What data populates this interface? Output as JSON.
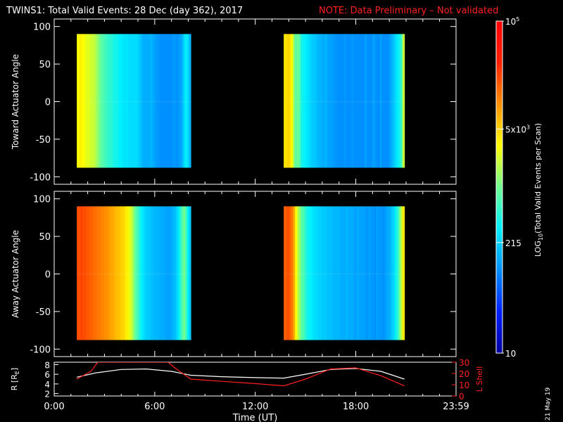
{
  "title": {
    "main": "TWINS1: Total Valid Events: 28 Dec (day 362), 2017",
    "note": "NOTE: Data Preliminary – Not validated"
  },
  "datestamp": "21 May 19",
  "colors": {
    "background": "#000000",
    "axes": "#ffffff",
    "note": "#ff2020",
    "lshell": "#ff2020",
    "radius": "#ffffff"
  },
  "chart_data": [
    {
      "type": "heatmap",
      "name": "toward",
      "ylabel": "Toward Actuator Angle",
      "ylim": [
        -110,
        110
      ],
      "yticks": [
        100,
        50,
        0,
        -50,
        -100
      ],
      "xlim": [
        0,
        23.983
      ],
      "angle_range": [
        -88,
        90
      ],
      "segments": [
        {
          "start_hour": 1.35,
          "end_hour": 8.15,
          "log10_counts": [
            3.5,
            3.55,
            3.55,
            3.5,
            3.45,
            3.4,
            3.4,
            3.35,
            3.3,
            3.3,
            3.2,
            3.1,
            3.0,
            2.9,
            2.85,
            2.8,
            2.75,
            2.7,
            2.7,
            2.65,
            2.6,
            2.6,
            2.55,
            2.5,
            2.5,
            2.45,
            2.45,
            2.45,
            2.4,
            2.4,
            2.4,
            2.4,
            2.4,
            2.35,
            2.3,
            2.2,
            2.15,
            2.15,
            2.15,
            2.15,
            2.2,
            2.15,
            2.1,
            2.05,
            2.05,
            2.0,
            2.0,
            2.0,
            2.0,
            2.0,
            2.0,
            2.0,
            2.05,
            2.05,
            2.0,
            2.05,
            2.1,
            2.2,
            2.4,
            2.5,
            2.4,
            2.2
          ]
        },
        {
          "start_hour": 13.7,
          "end_hour": 20.9,
          "log10_counts": [
            3.6,
            3.65,
            3.7,
            3.6,
            3.5,
            3.1,
            2.9,
            3.0,
            2.85,
            2.6,
            2.55,
            2.5,
            2.45,
            2.4,
            2.35,
            2.3,
            2.3,
            2.25,
            2.2,
            2.2,
            2.15,
            2.15,
            2.2,
            2.1,
            2.1,
            2.1,
            2.05,
            2.05,
            2.0,
            2.0,
            2.0,
            2.0,
            2.05,
            2.0,
            2.0,
            2.0,
            2.05,
            2.0,
            2.0,
            2.0,
            2.0,
            2.0,
            2.0,
            2.1,
            2.0,
            2.0,
            2.0,
            2.1,
            2.05,
            2.0,
            2.0,
            2.1,
            2.0,
            2.0,
            2.0,
            2.0,
            2.1,
            2.2,
            2.3,
            2.4,
            2.5,
            2.6,
            2.8,
            3.3
          ]
        }
      ]
    },
    {
      "type": "heatmap",
      "name": "away",
      "ylabel": "Away Actuator Angle",
      "ylim": [
        -110,
        110
      ],
      "yticks": [
        100,
        50,
        0,
        -50,
        -100
      ],
      "xlim": [
        0,
        23.983
      ],
      "angle_range": [
        -88,
        90
      ],
      "segments": [
        {
          "start_hour": 1.35,
          "end_hour": 8.15,
          "log10_counts": [
            4.3,
            4.3,
            4.35,
            4.3,
            4.3,
            4.25,
            4.25,
            4.2,
            4.2,
            4.15,
            4.15,
            4.1,
            4.1,
            4.05,
            4.05,
            4.0,
            4.0,
            3.95,
            3.9,
            3.9,
            3.85,
            3.8,
            3.8,
            3.75,
            3.7,
            3.7,
            3.6,
            3.55,
            3.45,
            3.35,
            3.2,
            3.0,
            2.85,
            2.75,
            2.6,
            2.5,
            2.4,
            2.35,
            2.3,
            2.3,
            2.25,
            2.25,
            2.2,
            2.2,
            2.2,
            2.15,
            2.15,
            2.15,
            2.1,
            2.1,
            2.1,
            2.15,
            2.2,
            2.25,
            2.35,
            2.5,
            2.7,
            2.9,
            3.0,
            2.8,
            2.5,
            2.3
          ]
        },
        {
          "start_hour": 13.7,
          "end_hour": 20.9,
          "log10_counts": [
            4.2,
            4.25,
            4.3,
            4.2,
            4.1,
            3.9,
            3.5,
            3.3,
            3.1,
            2.9,
            2.85,
            2.7,
            2.6,
            2.55,
            2.5,
            2.45,
            2.4,
            2.4,
            2.35,
            2.35,
            2.3,
            2.3,
            2.3,
            2.25,
            2.25,
            2.25,
            2.2,
            2.2,
            2.2,
            2.2,
            2.15,
            2.15,
            2.15,
            2.2,
            2.15,
            2.15,
            2.15,
            2.1,
            2.1,
            2.15,
            2.1,
            2.1,
            2.1,
            2.05,
            2.05,
            2.1,
            2.05,
            2.05,
            2.0,
            2.1,
            2.05,
            2.05,
            2.0,
            2.05,
            2.1,
            2.15,
            2.2,
            2.3,
            2.4,
            2.55,
            2.7,
            3.0,
            3.3,
            3.6
          ]
        }
      ]
    },
    {
      "type": "line",
      "name": "orbit",
      "xlabel": "Time (UT)",
      "xticks": [
        "0:00",
        "6:00",
        "12:00",
        "18:00",
        "23:59"
      ],
      "xtick_hours": [
        0,
        6,
        12,
        18,
        23.983
      ],
      "xlim": [
        0,
        23.983
      ],
      "ylabel_left": "R [R",
      "ylabel_left_sub": "E",
      "ylabel_left_end": "]",
      "ylim_left": [
        1.5,
        8.5
      ],
      "yticks_left": [
        8,
        6,
        4,
        2
      ],
      "ylabel_right": "L Shell",
      "ylim_right": [
        0,
        30
      ],
      "yticks_right": [
        30,
        20,
        10,
        0
      ],
      "series": [
        {
          "axis": "left",
          "x": [
            1.35,
            2.5,
            4,
            5.5,
            7,
            8.15,
            10,
            12,
            13.7,
            15,
            16.5,
            18,
            19.5,
            20.9
          ],
          "y": [
            5.4,
            6.3,
            7.0,
            7.1,
            6.6,
            5.8,
            5.5,
            5.3,
            5.2,
            6.0,
            7.0,
            7.2,
            6.6,
            5.0
          ]
        },
        {
          "axis": "right",
          "x": [
            1.35,
            2.2,
            2.6,
            6.8,
            7.2,
            8.15,
            10,
            12,
            13.7,
            15,
            16.5,
            18,
            19.5,
            20.9
          ],
          "y": [
            15,
            22,
            30,
            30,
            25,
            15,
            13,
            11,
            9,
            15,
            24,
            25,
            18,
            9
          ]
        }
      ]
    },
    {
      "type": "colorbar",
      "name": "colorscale",
      "label": "LOG",
      "label_sub": "10",
      "label_rest": "(Total Valid Events per Scan)",
      "log10_range": [
        1,
        5
      ],
      "tick_labels": [
        "10",
        "215",
        "5x10",
        "10"
      ],
      "tick_sup": [
        "",
        "",
        "3",
        "5"
      ],
      "tick_values": [
        1,
        2.332,
        3.699,
        5
      ],
      "gradient_stops": [
        "#0000a0",
        "#0020ff",
        "#0090ff",
        "#00f0ff",
        "#70ff90",
        "#ffff00",
        "#ff9000",
        "#ff2000",
        "#ff0000"
      ]
    }
  ]
}
